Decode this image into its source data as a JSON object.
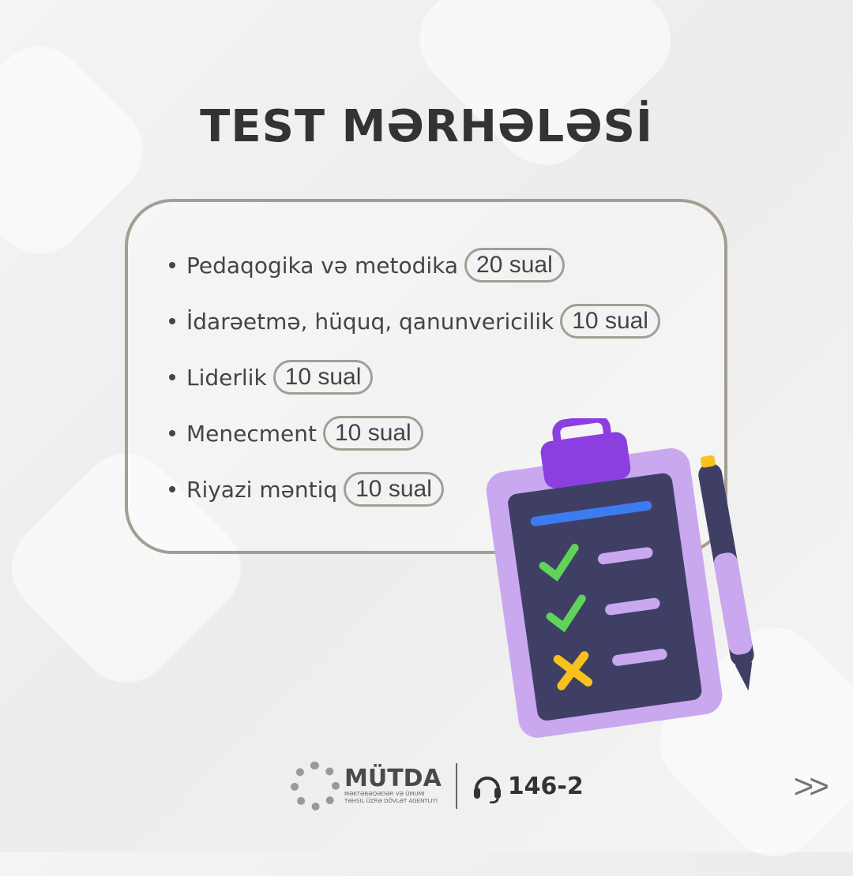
{
  "title": "TEST MƏRHƏLƏSİ",
  "items": [
    {
      "label": "Pedaqogika və metodika",
      "count": "20 sual"
    },
    {
      "label": "İdarəetmə, hüquq, qanunvericilik",
      "count": "10 sual"
    },
    {
      "label": "Liderlik",
      "count": "10 sual"
    },
    {
      "label": "Menecment",
      "count": "10 sual"
    },
    {
      "label": "Riyazi məntiq",
      "count": "10 sual"
    }
  ],
  "footer": {
    "brand": "MÜTDA",
    "brand_sub": "Məktəbəqədər və ümumi təhsil üzrə dövlət agentliyi",
    "phone": "146-2",
    "next": ">>"
  },
  "icons": [
    "clipboard-checklist-icon",
    "headset-icon",
    "logo-mark-icon"
  ],
  "colors": {
    "text": "#333333",
    "border": "#a59d93",
    "clipboard": "#c9a8f0",
    "clip": "#8b3fe0"
  }
}
